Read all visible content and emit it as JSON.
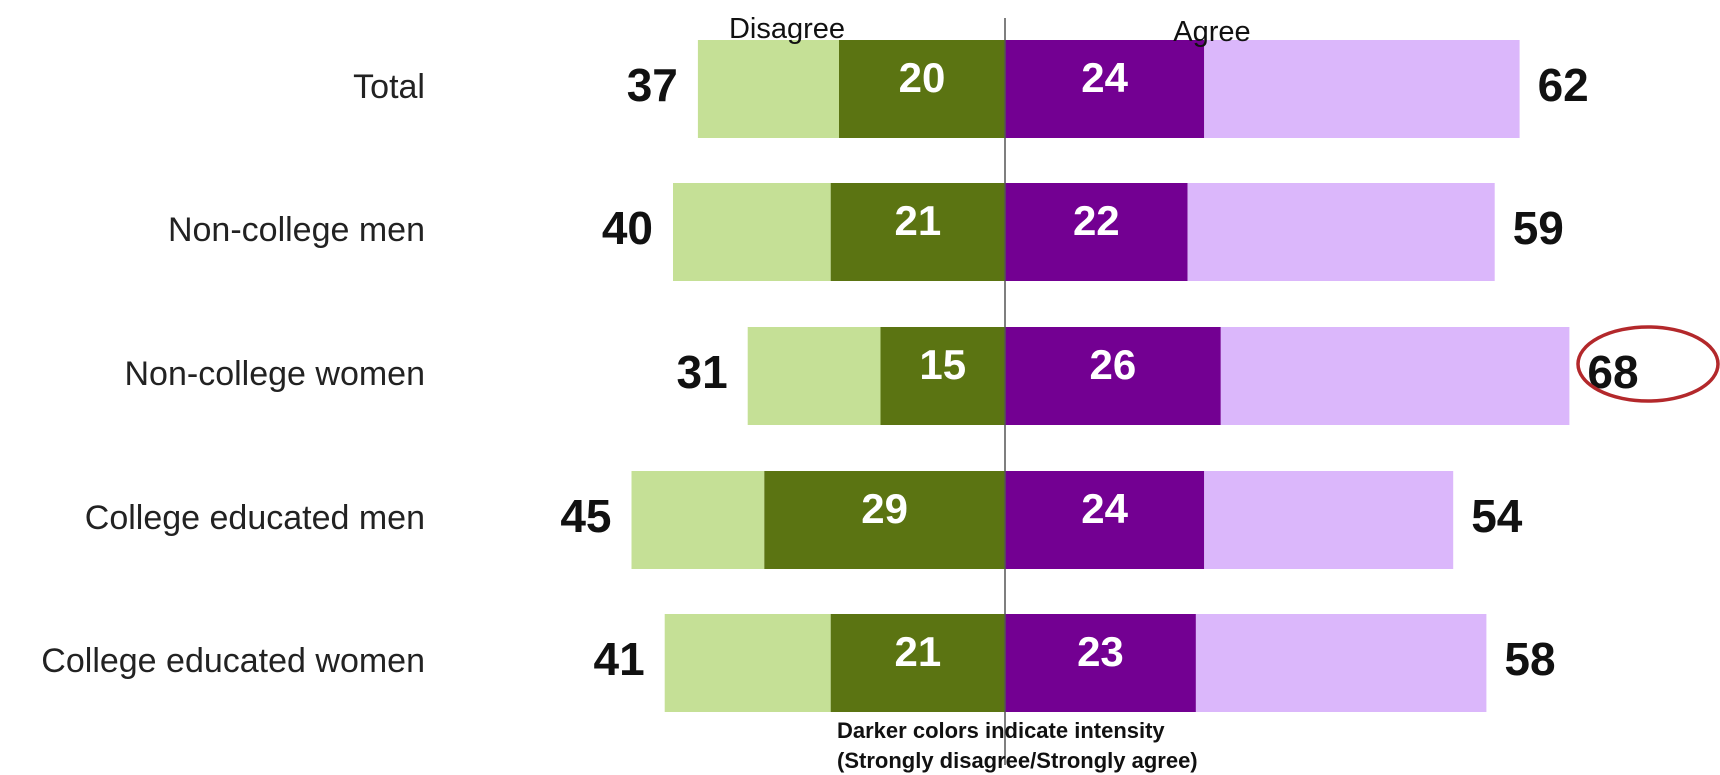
{
  "chart_data": {
    "type": "bar",
    "orientation": "horizontal-diverging",
    "headers": {
      "left": "Disagree",
      "right": "Agree"
    },
    "categories": [
      "Total",
      "Non-college men",
      "Non-college women",
      "College educated men",
      "College educated women"
    ],
    "series": [
      {
        "key": "disagree_total",
        "values": [
          37,
          40,
          31,
          45,
          41
        ],
        "color": "#c5e096"
      },
      {
        "key": "strongly_disagree",
        "values": [
          20,
          21,
          15,
          29,
          21
        ],
        "color": "#5b7412"
      },
      {
        "key": "strongly_agree",
        "values": [
          24,
          22,
          26,
          24,
          23
        ],
        "color": "#730092"
      },
      {
        "key": "agree_total",
        "values": [
          62,
          59,
          68,
          54,
          58
        ],
        "color": "#dbb7fb"
      }
    ],
    "highlight": {
      "category": "Non-college women",
      "value": 68,
      "color": "#b3282b"
    },
    "note": {
      "line1": "Darker colors indicate intensity",
      "line2": "(Strongly disagree/Strongly agree)"
    }
  }
}
